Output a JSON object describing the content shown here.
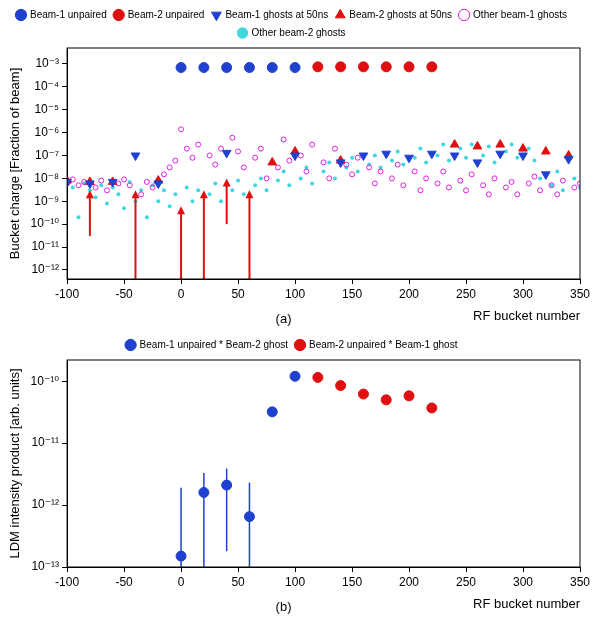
{
  "chart_data": [
    {
      "type": "scatter",
      "annotation": "(a)",
      "x_label": "RF bucket number",
      "y_label": "Bucket charge [Fraction of beam]",
      "log": "y",
      "grid": false,
      "legend": "top",
      "xlim": [
        -100,
        350
      ],
      "xticks": [
        -100,
        -50,
        0,
        50,
        100,
        150,
        200,
        250,
        300,
        350
      ],
      "ylim": [
        4e-13,
        0.005
      ],
      "yticks": [
        {
          "value": 1e-12,
          "label": "10⁻¹²"
        },
        {
          "value": 1e-11,
          "label": "10⁻¹¹"
        },
        {
          "value": 1e-10,
          "label": "10⁻¹⁰"
        },
        {
          "value": 1e-09,
          "label": "10⁻⁹"
        },
        {
          "value": 1e-08,
          "label": "10⁻⁸"
        },
        {
          "value": 1e-07,
          "label": "10⁻⁷"
        },
        {
          "value": 1e-06,
          "label": "10⁻⁶"
        },
        {
          "value": 1e-05,
          "label": "10⁻⁵"
        },
        {
          "value": 0.0001,
          "label": "10⁻⁴"
        },
        {
          "value": 0.001,
          "label": "10⁻³"
        }
      ],
      "series": [
        {
          "name": "Beam-1 unpaired",
          "color": "#2040d0",
          "marker": "circle",
          "x": [
            0,
            20,
            40,
            60,
            80,
            100
          ],
          "values": [
            0.0007,
            0.0007,
            0.0007,
            0.0007,
            0.0007,
            0.0007
          ]
        },
        {
          "name": "Beam-2 unpaired",
          "color": "#e01010",
          "marker": "circle",
          "x": [
            120,
            140,
            160,
            180,
            200,
            220
          ],
          "values": [
            0.00075,
            0.00075,
            0.00075,
            0.00075,
            0.00075,
            0.00075
          ]
        },
        {
          "name": "Beam-1 ghosts at 50ns",
          "color": "#2040d0",
          "marker": "triangle-down",
          "x": [
            -100,
            -80,
            -60,
            -40,
            -20,
            40,
            100,
            140,
            160,
            180,
            200,
            220,
            240,
            260,
            280,
            300,
            320,
            340
          ],
          "values": [
            7e-09,
            6e-09,
            7e-09,
            1e-07,
            6e-09,
            1.3e-07,
            1e-07,
            5e-08,
            1e-07,
            1.2e-07,
            8e-08,
            1.2e-07,
            1e-07,
            5e-08,
            1.2e-07,
            1e-07,
            1.5e-08,
            7e-08
          ]
        },
        {
          "name": "Beam-2 ghosts at 50ns",
          "color": "#e01010",
          "marker": "triangle-up",
          "x": [
            -100,
            -80,
            -60,
            -20,
            80,
            100,
            140,
            240,
            260,
            280,
            300,
            320,
            340
          ],
          "values": [
            8e-09,
            7e-09,
            7e-09,
            8e-09,
            5e-08,
            1.5e-07,
            6e-08,
            3e-07,
            2.5e-07,
            3e-07,
            2e-07,
            1.5e-07,
            1e-07
          ]
        },
        {
          "name": "Other beam-1 ghosts",
          "color": "#e020e0",
          "marker": "circle-open",
          "x": [
            -100,
            -95,
            -90,
            -85,
            -75,
            -70,
            -65,
            -55,
            -50,
            -45,
            -35,
            -30,
            -25,
            -15,
            -10,
            -5,
            0,
            5,
            10,
            15,
            25,
            30,
            35,
            45,
            50,
            55,
            65,
            70,
            75,
            85,
            90,
            95,
            105,
            110,
            115,
            125,
            130,
            135,
            145,
            150,
            155,
            165,
            170,
            175,
            185,
            190,
            195,
            205,
            210,
            215,
            225,
            230,
            235,
            245,
            250,
            255,
            265,
            270,
            275,
            285,
            290,
            295,
            305,
            310,
            315,
            325,
            330,
            335,
            345,
            350
          ],
          "values": [
            6e-09,
            9e-09,
            5e-09,
            7e-09,
            4e-09,
            8e-09,
            3e-09,
            6e-09,
            9e-09,
            5e-09,
            2e-09,
            7e-09,
            4e-09,
            1.5e-08,
            3e-08,
            6e-08,
            1.4e-06,
            2e-07,
            8e-08,
            3e-07,
            1e-07,
            4e-08,
            2e-07,
            6e-07,
            1.5e-07,
            3e-08,
            8e-08,
            2e-07,
            1e-08,
            3e-08,
            5e-07,
            6e-08,
            1e-07,
            2e-08,
            3e-07,
            5e-08,
            1e-08,
            2e-07,
            4e-08,
            1.5e-08,
            8e-08,
            3e-08,
            6e-09,
            2e-08,
            1e-08,
            4e-08,
            5e-09,
            2e-08,
            3e-09,
            1e-08,
            6e-09,
            2e-08,
            4e-09,
            8e-09,
            3e-09,
            1.5e-08,
            5e-09,
            2e-09,
            1e-08,
            4e-09,
            7e-09,
            2e-09,
            6e-09,
            1.2e-08,
            3e-09,
            5e-09,
            2e-09,
            8e-09,
            4e-09,
            6e-09
          ]
        },
        {
          "name": "Other beam-2 ghosts",
          "color": "#40d8e0",
          "marker": "dot",
          "x": [
            -100,
            -95,
            -90,
            -85,
            -80,
            -75,
            -70,
            -65,
            -60,
            -55,
            -50,
            -45,
            -40,
            -35,
            -30,
            -25,
            -20,
            -15,
            -10,
            -5,
            5,
            10,
            15,
            25,
            30,
            35,
            45,
            50,
            55,
            65,
            70,
            75,
            85,
            90,
            95,
            105,
            110,
            115,
            125,
            130,
            135,
            145,
            150,
            155,
            165,
            170,
            175,
            185,
            190,
            195,
            205,
            210,
            215,
            225,
            230,
            235,
            245,
            250,
            255,
            265,
            270,
            275,
            285,
            290,
            295,
            305,
            310,
            315,
            325,
            330,
            335,
            345,
            350
          ],
          "values": [
            8e-09,
            4e-09,
            2e-10,
            6e-09,
            3e-09,
            1.5e-09,
            5e-09,
            8e-10,
            4e-09,
            2e-09,
            5e-10,
            7e-09,
            1e-09,
            3e-09,
            2e-10,
            5e-09,
            1e-09,
            3e-09,
            6e-10,
            2e-09,
            4e-09,
            1e-09,
            3e-09,
            2e-09,
            6e-09,
            1e-09,
            3e-09,
            8e-09,
            2e-09,
            5e-09,
            1e-08,
            3e-09,
            8e-09,
            2e-08,
            5e-09,
            1e-08,
            3e-08,
            6e-09,
            2e-08,
            5e-08,
            1e-08,
            3e-08,
            8e-08,
            2e-08,
            4e-08,
            1e-07,
            3e-08,
            6e-08,
            1.5e-07,
            4e-08,
            8e-08,
            2e-07,
            5e-08,
            1e-07,
            3e-07,
            6e-08,
            2e-07,
            8e-08,
            3e-07,
            1e-07,
            2.5e-07,
            5e-08,
            1.5e-07,
            3e-07,
            8e-08,
            2e-07,
            6e-08,
            1e-08,
            5e-09,
            2e-08,
            3e-09,
            1e-08,
            4e-09
          ]
        }
      ],
      "arrows": {
        "color": "#e01010",
        "points": [
          {
            "x": -80,
            "from": 3e-11,
            "to": 3e-09
          },
          {
            "x": -40,
            "from": 4e-13,
            "to": 3e-09
          },
          {
            "x": 0,
            "from": 4e-13,
            "to": 6e-10
          },
          {
            "x": 20,
            "from": 4e-13,
            "to": 3e-09
          },
          {
            "x": 40,
            "from": 1e-10,
            "to": 1e-08
          },
          {
            "x": 60,
            "from": 4e-13,
            "to": 3e-09
          }
        ]
      }
    },
    {
      "type": "scatter",
      "annotation": "(b)",
      "x_label": "RF bucket number",
      "y_label": "LDM intensity product [arb. units]",
      "log": "y",
      "grid": false,
      "legend": "top",
      "xlim": [
        -100,
        350
      ],
      "xticks": [
        -100,
        -50,
        0,
        50,
        100,
        150,
        200,
        250,
        300,
        350
      ],
      "ylim": [
        1e-13,
        2.2e-10
      ],
      "yticks": [
        {
          "value": 1e-13,
          "label": "10⁻¹³"
        },
        {
          "value": 1e-12,
          "label": "10⁻¹²"
        },
        {
          "value": 1e-11,
          "label": "10⁻¹¹"
        },
        {
          "value": 1e-10,
          "label": "10⁻¹⁰"
        }
      ],
      "series": [
        {
          "name": "Beam-1 unpaired * Beam-2 ghost",
          "color": "#2040d0",
          "marker": "circle",
          "x": [
            0,
            20,
            40,
            60,
            80,
            100
          ],
          "values": [
            1.5e-13,
            1.6e-12,
            2.1e-12,
            6.5e-13,
            3.2e-11,
            1.2e-10
          ],
          "errors": [
            [
              1e-14,
              1.9e-12
            ],
            [
              1e-13,
              3.3e-12
            ],
            [
              1.8e-13,
              3.9e-12
            ],
            [
              1e-14,
              2.3e-12
            ],
            [
              2.7e-11,
              3.8e-11
            ],
            null
          ]
        },
        {
          "name": "Beam-2 unpaired * Beam-1 ghost",
          "color": "#e01010",
          "marker": "circle",
          "x": [
            120,
            140,
            160,
            180,
            200,
            220
          ],
          "values": [
            1.15e-10,
            8.5e-11,
            6.2e-11,
            5e-11,
            5.8e-11,
            3.7e-11
          ]
        }
      ]
    }
  ]
}
